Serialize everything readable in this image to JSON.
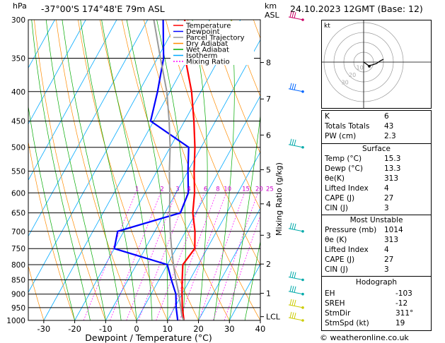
{
  "header": {
    "hpa_label": "hPa",
    "location": "-37°00'S 174°48'E 79m ASL",
    "km_label": "km",
    "asl_label": "ASL",
    "datetime": "24.10.2023 12GMT (Base: 12)"
  },
  "skewt": {
    "x_axis_label": "Dewpoint / Temperature (°C)",
    "x_ticks": [
      -30,
      -20,
      -10,
      0,
      10,
      20,
      30,
      40
    ],
    "pressure_ticks": [
      300,
      350,
      400,
      450,
      500,
      550,
      600,
      650,
      700,
      750,
      800,
      850,
      900,
      950,
      1000
    ],
    "km_ticks": [
      {
        "label": "8",
        "p": 356
      },
      {
        "label": "7",
        "p": 412
      },
      {
        "label": "6",
        "p": 476
      },
      {
        "label": "5",
        "p": 547
      },
      {
        "label": "4",
        "p": 627
      },
      {
        "label": "3",
        "p": 711
      },
      {
        "label": "2",
        "p": 798
      },
      {
        "label": "1",
        "p": 897
      },
      {
        "label": "LCL",
        "p": 985
      }
    ],
    "mixing_ratio_axis_label": "Mixing Ratio (g/kg)",
    "mixing_ratio_labels": [
      "1",
      "2",
      "3",
      "4",
      "6",
      "8",
      "10",
      "15",
      "20",
      "25"
    ],
    "mixing_ratio_values": [
      1,
      2,
      3,
      4,
      6,
      8,
      10,
      15,
      20,
      25
    ],
    "legend": [
      {
        "label": "Temperature",
        "color": "#ff0000",
        "dash": ""
      },
      {
        "label": "Dewpoint",
        "color": "#0000ff",
        "dash": ""
      },
      {
        "label": "Parcel Trajectory",
        "color": "#999999",
        "dash": ""
      },
      {
        "label": "Dry Adiabat",
        "color": "#ff8c00",
        "dash": ""
      },
      {
        "label": "Wet Adiabat",
        "color": "#00aa00",
        "dash": ""
      },
      {
        "label": "Isotherm",
        "color": "#00aaff",
        "dash": ""
      },
      {
        "label": "Mixing Ratio",
        "color": "#ff00ff",
        "dash": "2,2"
      }
    ]
  },
  "chart_data": {
    "type": "line",
    "series": [
      {
        "name": "Temperature",
        "color": "#ff0000",
        "points": [
          [
            1000,
            15.3
          ],
          [
            950,
            12.5
          ],
          [
            900,
            10
          ],
          [
            850,
            7.5
          ],
          [
            800,
            5
          ],
          [
            750,
            6
          ],
          [
            700,
            3
          ],
          [
            650,
            -1
          ],
          [
            600,
            -4
          ],
          [
            550,
            -8
          ],
          [
            500,
            -12
          ],
          [
            450,
            -17
          ],
          [
            400,
            -23
          ],
          [
            350,
            -31
          ],
          [
            300,
            -38
          ]
        ]
      },
      {
        "name": "Dewpoint",
        "color": "#0000ff",
        "points": [
          [
            1000,
            13.3
          ],
          [
            950,
            10.5
          ],
          [
            900,
            8
          ],
          [
            850,
            4
          ],
          [
            800,
            0
          ],
          [
            750,
            -20
          ],
          [
            700,
            -22
          ],
          [
            650,
            -5
          ],
          [
            600,
            -6
          ],
          [
            550,
            -10
          ],
          [
            500,
            -14
          ],
          [
            450,
            -31
          ],
          [
            400,
            -34
          ],
          [
            350,
            -38
          ],
          [
            300,
            -45
          ]
        ]
      },
      {
        "name": "Parcel Trajectory",
        "color": "#999999",
        "points": [
          [
            1000,
            15.3
          ],
          [
            985,
            14
          ],
          [
            950,
            12
          ],
          [
            900,
            9
          ],
          [
            850,
            5.5
          ],
          [
            800,
            2
          ],
          [
            750,
            -1.5
          ],
          [
            700,
            -5
          ],
          [
            650,
            -8.5
          ],
          [
            600,
            -12
          ],
          [
            550,
            -16
          ],
          [
            500,
            -20
          ],
          [
            450,
            -25
          ],
          [
            400,
            -31
          ],
          [
            350,
            -39
          ],
          [
            300,
            -48
          ]
        ]
      }
    ],
    "x_range": [
      -35,
      40
    ],
    "p_range": [
      1000,
      300
    ]
  },
  "hodograph": {
    "label": "kt",
    "ring_labels": [
      "10",
      "20",
      "30"
    ]
  },
  "indices": {
    "rows": [
      {
        "k": "K",
        "v": "6"
      },
      {
        "k": "Totals Totals",
        "v": "43"
      },
      {
        "k": "PW (cm)",
        "v": "2.3"
      }
    ]
  },
  "surface": {
    "title": "Surface",
    "rows": [
      {
        "k": "Temp (°C)",
        "v": "15.3"
      },
      {
        "k": "Dewp (°C)",
        "v": "13.3"
      },
      {
        "k": "θe(K)",
        "v": "313"
      },
      {
        "k": "Lifted Index",
        "v": "4"
      },
      {
        "k": "CAPE (J)",
        "v": "27"
      },
      {
        "k": "CIN (J)",
        "v": "3"
      }
    ]
  },
  "most_unstable": {
    "title": "Most Unstable",
    "rows": [
      {
        "k": "Pressure (mb)",
        "v": "1014"
      },
      {
        "k": "θe (K)",
        "v": "313"
      },
      {
        "k": "Lifted Index",
        "v": "4"
      },
      {
        "k": "CAPE (J)",
        "v": "27"
      },
      {
        "k": "CIN (J)",
        "v": "3"
      }
    ]
  },
  "hodograph_table": {
    "title": "Hodograph",
    "rows": [
      {
        "k": "EH",
        "v": "-103"
      },
      {
        "k": "SREH",
        "v": "-12"
      },
      {
        "k": "StmDir",
        "v": "311°"
      },
      {
        "k": "StmSpd (kt)",
        "v": "19"
      }
    ]
  },
  "footer": "© weatheronline.co.uk"
}
